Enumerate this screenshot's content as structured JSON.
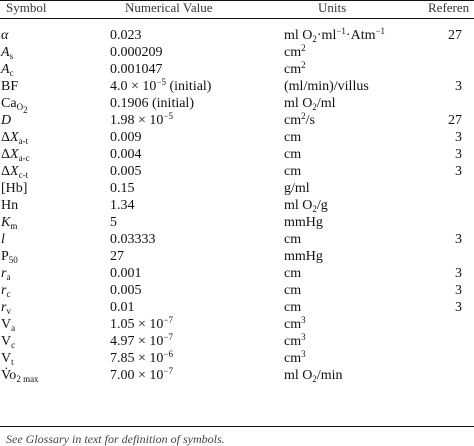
{
  "table": {
    "headers": {
      "symbol": "Symbol",
      "value": "Numerical Value",
      "units": "Units",
      "reference": "Referen"
    },
    "rows": [
      {
        "sym": "α",
        "sym_italic": true,
        "value": "0.023",
        "units": "ml O2·ml-1·Atm-1",
        "ref": "27"
      },
      {
        "sym": "As",
        "sym_italic": true,
        "value": "0.000209",
        "units": "cm2",
        "ref": ""
      },
      {
        "sym": "Ac",
        "sym_italic": true,
        "value": "0.001047",
        "units": "cm2",
        "ref": ""
      },
      {
        "sym": "BF",
        "sym_italic": false,
        "value": "4.0 × 10-5 (initial)",
        "units": "(ml/min)/villus",
        "ref": "3"
      },
      {
        "sym": "CaO2",
        "sym_italic": false,
        "value": "0.1906 (initial)",
        "units": "ml O2/ml",
        "ref": ""
      },
      {
        "sym": "D",
        "sym_italic": true,
        "value": "1.98 × 10-5",
        "units": "cm2/s",
        "ref": "27"
      },
      {
        "sym": "ΔXa-t",
        "sym_italic": false,
        "value": "0.009",
        "units": "cm",
        "ref": "3"
      },
      {
        "sym": "ΔXa-c",
        "sym_italic": false,
        "value": "0.004",
        "units": "cm",
        "ref": "3"
      },
      {
        "sym": "ΔXc-t",
        "sym_italic": false,
        "value": "0.005",
        "units": "cm",
        "ref": "3"
      },
      {
        "sym": "[Hb]",
        "sym_italic": false,
        "value": "0.15",
        "units": "g/ml",
        "ref": ""
      },
      {
        "sym": "Hn",
        "sym_italic": false,
        "value": "1.34",
        "units": "ml O2/g",
        "ref": ""
      },
      {
        "sym": "Km",
        "sym_italic": true,
        "value": "5",
        "units": "mmHg",
        "ref": ""
      },
      {
        "sym": "l",
        "sym_italic": true,
        "value": "0.03333",
        "units": "cm",
        "ref": "3"
      },
      {
        "sym": "P50",
        "sym_italic": false,
        "value": "27",
        "units": "mmHg",
        "ref": ""
      },
      {
        "sym": "ra",
        "sym_italic": true,
        "value": "0.001",
        "units": "cm",
        "ref": "3"
      },
      {
        "sym": "rc",
        "sym_italic": true,
        "value": "0.005",
        "units": "cm",
        "ref": "3"
      },
      {
        "sym": "rv",
        "sym_italic": true,
        "value": "0.01",
        "units": "cm",
        "ref": "3"
      },
      {
        "sym": "Va",
        "sym_italic": false,
        "value": "1.05 × 10-7",
        "units": "cm3",
        "ref": ""
      },
      {
        "sym": "Vc",
        "sym_italic": false,
        "value": "4.97 × 10-7",
        "units": "cm3",
        "ref": ""
      },
      {
        "sym": "Vt",
        "sym_italic": false,
        "value": "7.85 × 10-6",
        "units": "cm3",
        "ref": ""
      },
      {
        "sym": "V̇o2 max",
        "sym_italic": false,
        "value": "7.00 × 10-7",
        "units": "ml O2/min",
        "ref": ""
      }
    ]
  },
  "footnote": "See Glossary in text for definition of symbols."
}
